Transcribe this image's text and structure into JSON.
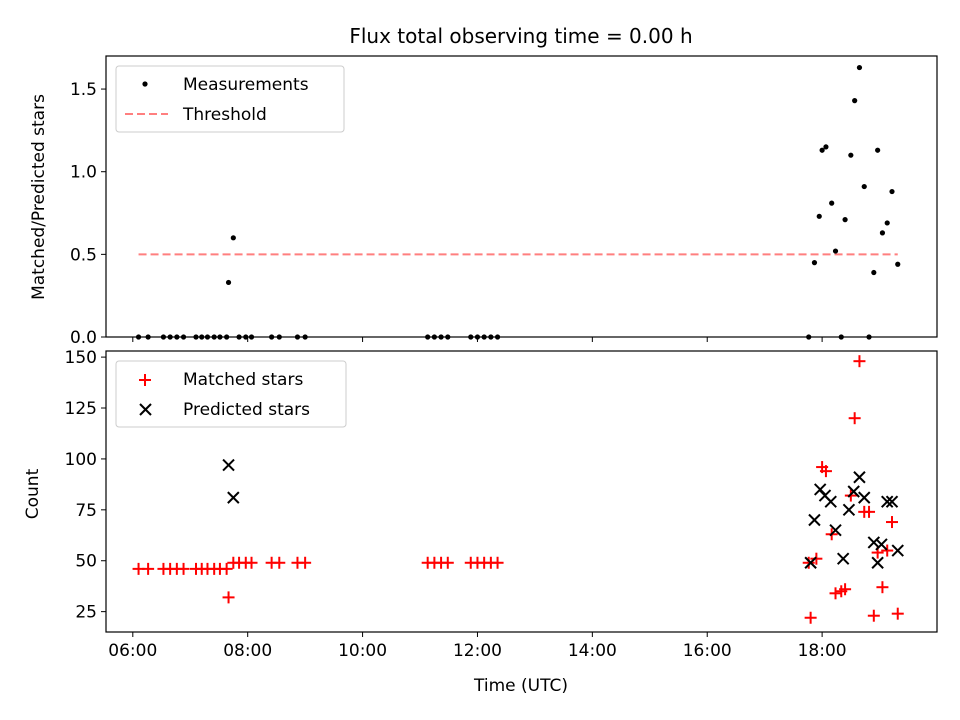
{
  "chart_data": [
    {
      "type": "scatter",
      "title": "Flux total observing time = 0.00 h",
      "xlabel": "",
      "ylabel": "Matched/Predicted stars",
      "xlim": [
        "05:32",
        "20:00"
      ],
      "ylim": [
        0,
        1.7
      ],
      "yticks": [
        "0.0",
        "0.5",
        "1.0",
        "1.5"
      ],
      "grid": false,
      "legend_position": "top-left",
      "series": [
        {
          "name": "Measurements",
          "marker": "dot",
          "color": "#000000",
          "points": [
            [
              "06:06",
              0
            ],
            [
              "06:16",
              0
            ],
            [
              "06:32",
              0
            ],
            [
              "06:39",
              0
            ],
            [
              "06:46",
              0
            ],
            [
              "06:53",
              0
            ],
            [
              "07:06",
              0
            ],
            [
              "07:12",
              0
            ],
            [
              "07:18",
              0
            ],
            [
              "07:25",
              0
            ],
            [
              "07:31",
              0
            ],
            [
              "07:38",
              0
            ],
            [
              "07:40",
              0.33
            ],
            [
              "07:45",
              0.6
            ],
            [
              "07:51",
              0
            ],
            [
              "07:58",
              0
            ],
            [
              "08:04",
              0
            ],
            [
              "08:25",
              0
            ],
            [
              "08:33",
              0
            ],
            [
              "08:52",
              0
            ],
            [
              "09:00",
              0
            ],
            [
              "11:08",
              0
            ],
            [
              "11:15",
              0
            ],
            [
              "11:22",
              0
            ],
            [
              "11:29",
              0
            ],
            [
              "11:53",
              0
            ],
            [
              "12:00",
              0
            ],
            [
              "12:07",
              0
            ],
            [
              "12:14",
              0
            ],
            [
              "12:21",
              0
            ],
            [
              "17:46",
              0
            ],
            [
              "17:52",
              0.45
            ],
            [
              "17:57",
              0.73
            ],
            [
              "18:00",
              1.13
            ],
            [
              "18:04",
              1.15
            ],
            [
              "18:10",
              0.81
            ],
            [
              "18:14",
              0.52
            ],
            [
              "18:20",
              0
            ],
            [
              "18:24",
              0.71
            ],
            [
              "18:30",
              1.1
            ],
            [
              "18:34",
              1.43
            ],
            [
              "18:39",
              1.63
            ],
            [
              "18:44",
              0.91
            ],
            [
              "18:49",
              0
            ],
            [
              "18:54",
              0.39
            ],
            [
              "18:58",
              1.13
            ],
            [
              "19:03",
              0.63
            ],
            [
              "19:08",
              0.69
            ],
            [
              "19:13",
              0.88
            ],
            [
              "19:19",
              0.44
            ]
          ]
        },
        {
          "name": "Threshold",
          "style": "dashed-line",
          "color": "#ff7f7f",
          "points": [
            [
              "06:06",
              0.5
            ],
            [
              "19:19",
              0.5
            ]
          ]
        }
      ]
    },
    {
      "type": "scatter",
      "title": "",
      "xlabel": "Time (UTC)",
      "ylabel": "Count",
      "xlim": [
        "05:32",
        "20:00"
      ],
      "ylim": [
        15,
        153
      ],
      "xticks": [
        "06:00",
        "08:00",
        "10:00",
        "12:00",
        "14:00",
        "16:00",
        "18:00"
      ],
      "yticks": [
        "25",
        "50",
        "75",
        "100",
        "125",
        "150"
      ],
      "grid": false,
      "legend_position": "top-left",
      "series": [
        {
          "name": "Matched stars",
          "marker": "plus",
          "color": "#ff0000",
          "points": [
            [
              "06:06",
              46
            ],
            [
              "06:16",
              46
            ],
            [
              "06:32",
              46
            ],
            [
              "06:39",
              46
            ],
            [
              "06:46",
              46
            ],
            [
              "06:53",
              46
            ],
            [
              "07:06",
              46
            ],
            [
              "07:12",
              46
            ],
            [
              "07:18",
              46
            ],
            [
              "07:25",
              46
            ],
            [
              "07:31",
              46
            ],
            [
              "07:38",
              46
            ],
            [
              "07:40",
              32
            ],
            [
              "07:45",
              49
            ],
            [
              "07:51",
              49
            ],
            [
              "07:58",
              49
            ],
            [
              "08:04",
              49
            ],
            [
              "08:25",
              49
            ],
            [
              "08:33",
              49
            ],
            [
              "08:52",
              49
            ],
            [
              "09:00",
              49
            ],
            [
              "11:08",
              49
            ],
            [
              "11:15",
              49
            ],
            [
              "11:22",
              49
            ],
            [
              "11:29",
              49
            ],
            [
              "11:53",
              49
            ],
            [
              "12:00",
              49
            ],
            [
              "12:07",
              49
            ],
            [
              "12:14",
              49
            ],
            [
              "12:21",
              49
            ],
            [
              "17:46",
              49
            ],
            [
              "17:48",
              22
            ],
            [
              "17:54",
              51
            ],
            [
              "18:00",
              96
            ],
            [
              "18:04",
              94
            ],
            [
              "18:10",
              63
            ],
            [
              "18:14",
              34
            ],
            [
              "18:20",
              35
            ],
            [
              "18:24",
              36
            ],
            [
              "18:30",
              82
            ],
            [
              "18:34",
              120
            ],
            [
              "18:39",
              148
            ],
            [
              "18:44",
              74
            ],
            [
              "18:49",
              74
            ],
            [
              "18:54",
              23
            ],
            [
              "18:58",
              54
            ],
            [
              "19:03",
              37
            ],
            [
              "19:08",
              55
            ],
            [
              "19:13",
              69
            ],
            [
              "19:19",
              24
            ]
          ]
        },
        {
          "name": "Predicted stars",
          "marker": "x",
          "color": "#000000",
          "points": [
            [
              "07:40",
              97
            ],
            [
              "07:45",
              81
            ],
            [
              "17:48",
              49
            ],
            [
              "17:52",
              70
            ],
            [
              "17:58",
              85
            ],
            [
              "18:03",
              82
            ],
            [
              "18:09",
              79
            ],
            [
              "18:14",
              65
            ],
            [
              "18:22",
              51
            ],
            [
              "18:28",
              75
            ],
            [
              "18:33",
              84
            ],
            [
              "18:39",
              91
            ],
            [
              "18:44",
              81
            ],
            [
              "18:54",
              59
            ],
            [
              "18:58",
              49
            ],
            [
              "19:02",
              58
            ],
            [
              "19:08",
              79
            ],
            [
              "19:13",
              79
            ],
            [
              "19:19",
              55
            ]
          ]
        }
      ]
    }
  ]
}
